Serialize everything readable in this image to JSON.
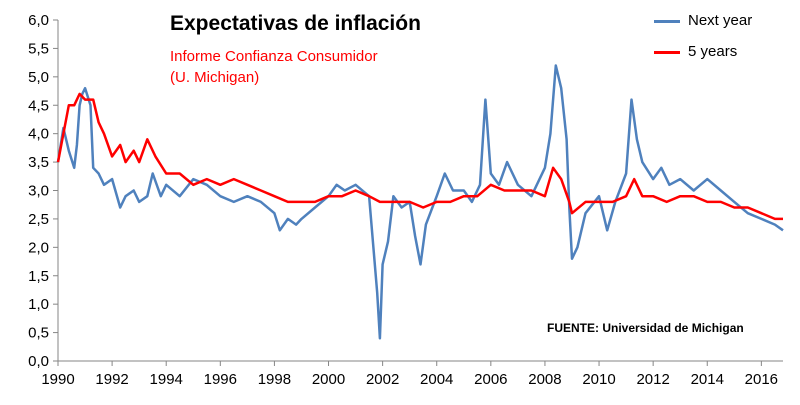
{
  "chart_data": {
    "type": "line",
    "title": "Expectativas de inflación",
    "subtitle_lines": [
      "Informe Confianza Consumidor",
      "(U. Michigan)"
    ],
    "source": "FUENTE: Universidad de Michigan",
    "legend_placement": "top-right",
    "grid": false,
    "xlim": [
      1990,
      2016.8
    ],
    "ylim": [
      0,
      6
    ],
    "x_ticks": [
      1990,
      1992,
      1994,
      1996,
      1998,
      2000,
      2002,
      2004,
      2006,
      2008,
      2010,
      2012,
      2014,
      2016
    ],
    "y_ticks": [
      "0,0",
      "0,5",
      "1,0",
      "1,5",
      "2,0",
      "2,5",
      "3,0",
      "3,5",
      "4,0",
      "4,5",
      "5,0",
      "5,5",
      "6,0"
    ],
    "series": [
      {
        "name": "Next year",
        "color": "#4f81bd",
        "points": [
          [
            1990.0,
            3.5
          ],
          [
            1990.2,
            4.1
          ],
          [
            1990.4,
            3.7
          ],
          [
            1990.6,
            3.4
          ],
          [
            1990.7,
            3.8
          ],
          [
            1990.8,
            4.5
          ],
          [
            1990.9,
            4.7
          ],
          [
            1991.0,
            4.8
          ],
          [
            1991.2,
            4.5
          ],
          [
            1991.3,
            3.4
          ],
          [
            1991.5,
            3.3
          ],
          [
            1991.7,
            3.1
          ],
          [
            1992.0,
            3.2
          ],
          [
            1992.3,
            2.7
          ],
          [
            1992.5,
            2.9
          ],
          [
            1992.8,
            3.0
          ],
          [
            1993.0,
            2.8
          ],
          [
            1993.3,
            2.9
          ],
          [
            1993.5,
            3.3
          ],
          [
            1993.8,
            2.9
          ],
          [
            1994.0,
            3.1
          ],
          [
            1994.5,
            2.9
          ],
          [
            1995.0,
            3.2
          ],
          [
            1995.5,
            3.1
          ],
          [
            1996.0,
            2.9
          ],
          [
            1996.5,
            2.8
          ],
          [
            1997.0,
            2.9
          ],
          [
            1997.5,
            2.8
          ],
          [
            1998.0,
            2.6
          ],
          [
            1998.2,
            2.3
          ],
          [
            1998.5,
            2.5
          ],
          [
            1998.8,
            2.4
          ],
          [
            1999.0,
            2.5
          ],
          [
            1999.5,
            2.7
          ],
          [
            2000.0,
            2.9
          ],
          [
            2000.3,
            3.1
          ],
          [
            2000.6,
            3.0
          ],
          [
            2001.0,
            3.1
          ],
          [
            2001.5,
            2.9
          ],
          [
            2001.8,
            1.2
          ],
          [
            2001.9,
            0.4
          ],
          [
            2002.0,
            1.7
          ],
          [
            2002.2,
            2.1
          ],
          [
            2002.4,
            2.9
          ],
          [
            2002.7,
            2.7
          ],
          [
            2003.0,
            2.8
          ],
          [
            2003.2,
            2.2
          ],
          [
            2003.4,
            1.7
          ],
          [
            2003.6,
            2.4
          ],
          [
            2004.0,
            2.9
          ],
          [
            2004.3,
            3.3
          ],
          [
            2004.6,
            3.0
          ],
          [
            2005.0,
            3.0
          ],
          [
            2005.3,
            2.8
          ],
          [
            2005.6,
            3.1
          ],
          [
            2005.8,
            4.6
          ],
          [
            2006.0,
            3.3
          ],
          [
            2006.3,
            3.1
          ],
          [
            2006.6,
            3.5
          ],
          [
            2007.0,
            3.1
          ],
          [
            2007.5,
            2.9
          ],
          [
            2008.0,
            3.4
          ],
          [
            2008.2,
            4.0
          ],
          [
            2008.4,
            5.2
          ],
          [
            2008.6,
            4.8
          ],
          [
            2008.8,
            3.9
          ],
          [
            2008.9,
            2.7
          ],
          [
            2009.0,
            1.8
          ],
          [
            2009.2,
            2.0
          ],
          [
            2009.5,
            2.6
          ],
          [
            2010.0,
            2.9
          ],
          [
            2010.3,
            2.3
          ],
          [
            2010.6,
            2.8
          ],
          [
            2011.0,
            3.3
          ],
          [
            2011.2,
            4.6
          ],
          [
            2011.4,
            3.9
          ],
          [
            2011.6,
            3.5
          ],
          [
            2012.0,
            3.2
          ],
          [
            2012.3,
            3.4
          ],
          [
            2012.6,
            3.1
          ],
          [
            2013.0,
            3.2
          ],
          [
            2013.5,
            3.0
          ],
          [
            2014.0,
            3.2
          ],
          [
            2014.5,
            3.0
          ],
          [
            2015.0,
            2.8
          ],
          [
            2015.5,
            2.6
          ],
          [
            2016.0,
            2.5
          ],
          [
            2016.5,
            2.4
          ],
          [
            2016.8,
            2.3
          ]
        ]
      },
      {
        "name": "5 years",
        "color": "#ff0000",
        "points": [
          [
            1990.0,
            3.5
          ],
          [
            1990.2,
            4.0
          ],
          [
            1990.4,
            4.5
          ],
          [
            1990.6,
            4.5
          ],
          [
            1990.8,
            4.7
          ],
          [
            1991.0,
            4.6
          ],
          [
            1991.3,
            4.6
          ],
          [
            1991.5,
            4.2
          ],
          [
            1991.7,
            4.0
          ],
          [
            1992.0,
            3.6
          ],
          [
            1992.3,
            3.8
          ],
          [
            1992.5,
            3.5
          ],
          [
            1992.8,
            3.7
          ],
          [
            1993.0,
            3.5
          ],
          [
            1993.3,
            3.9
          ],
          [
            1993.6,
            3.6
          ],
          [
            1994.0,
            3.3
          ],
          [
            1994.5,
            3.3
          ],
          [
            1995.0,
            3.1
          ],
          [
            1995.5,
            3.2
          ],
          [
            1996.0,
            3.1
          ],
          [
            1996.5,
            3.2
          ],
          [
            1997.0,
            3.1
          ],
          [
            1997.5,
            3.0
          ],
          [
            1998.0,
            2.9
          ],
          [
            1998.5,
            2.8
          ],
          [
            1999.0,
            2.8
          ],
          [
            1999.5,
            2.8
          ],
          [
            2000.0,
            2.9
          ],
          [
            2000.5,
            2.9
          ],
          [
            2001.0,
            3.0
          ],
          [
            2001.5,
            2.9
          ],
          [
            2001.9,
            2.8
          ],
          [
            2002.2,
            2.8
          ],
          [
            2002.6,
            2.8
          ],
          [
            2003.0,
            2.8
          ],
          [
            2003.5,
            2.7
          ],
          [
            2004.0,
            2.8
          ],
          [
            2004.5,
            2.8
          ],
          [
            2005.0,
            2.9
          ],
          [
            2005.5,
            2.9
          ],
          [
            2006.0,
            3.1
          ],
          [
            2006.5,
            3.0
          ],
          [
            2007.0,
            3.0
          ],
          [
            2007.5,
            3.0
          ],
          [
            2008.0,
            2.9
          ],
          [
            2008.3,
            3.4
          ],
          [
            2008.6,
            3.2
          ],
          [
            2008.9,
            2.8
          ],
          [
            2009.0,
            2.6
          ],
          [
            2009.5,
            2.8
          ],
          [
            2010.0,
            2.8
          ],
          [
            2010.5,
            2.8
          ],
          [
            2011.0,
            2.9
          ],
          [
            2011.3,
            3.2
          ],
          [
            2011.6,
            2.9
          ],
          [
            2012.0,
            2.9
          ],
          [
            2012.5,
            2.8
          ],
          [
            2013.0,
            2.9
          ],
          [
            2013.5,
            2.9
          ],
          [
            2014.0,
            2.8
          ],
          [
            2014.5,
            2.8
          ],
          [
            2015.0,
            2.7
          ],
          [
            2015.5,
            2.7
          ],
          [
            2016.0,
            2.6
          ],
          [
            2016.5,
            2.5
          ],
          [
            2016.8,
            2.5
          ]
        ]
      }
    ]
  }
}
